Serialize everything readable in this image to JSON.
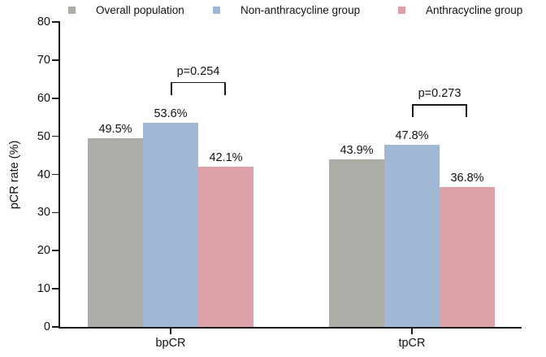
{
  "chart_data": {
    "type": "bar",
    "title": "",
    "ylabel": "pCR rate (%)",
    "xlabel": "",
    "ylim": [
      0,
      80
    ],
    "yticks": [
      "0",
      "10",
      "20",
      "30",
      "40",
      "50",
      "60",
      "70",
      "80"
    ],
    "grid": false,
    "legend_position": "top",
    "categories": [
      "bpCR",
      "tpCR"
    ],
    "series": [
      {
        "name": "Overall population",
        "color": "#abaea7",
        "values": [
          49.5,
          43.9
        ],
        "labels": [
          "49.5%",
          "43.9%"
        ]
      },
      {
        "name": "Non-anthracycline group",
        "color": "#a0b8d3",
        "values": [
          53.6,
          47.8
        ],
        "labels": [
          "53.6%",
          "47.8%"
        ]
      },
      {
        "name": "Anthracycline group",
        "color": "#dba0a8",
        "values": [
          42.1,
          36.8
        ],
        "labels": [
          "42.1%",
          "36.8%"
        ]
      }
    ],
    "annotations": [
      {
        "text": "p=0.254",
        "category_index": 0,
        "series_indices": [
          1,
          2
        ]
      },
      {
        "text": "p=0.273",
        "category_index": 1,
        "series_indices": [
          1,
          2
        ]
      }
    ],
    "axis_color": "#1a1a1a",
    "text_color": "#111111"
  }
}
